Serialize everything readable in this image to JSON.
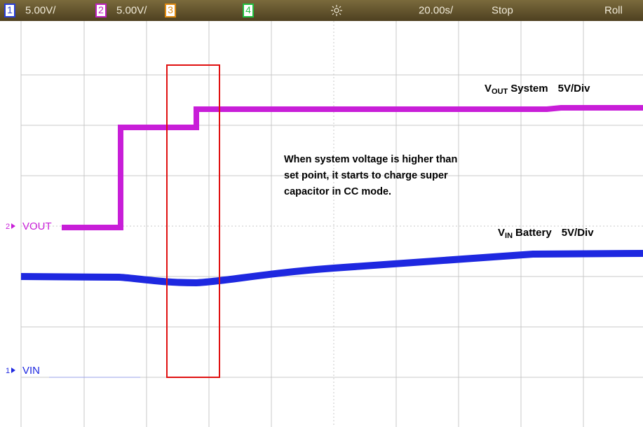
{
  "header": {
    "channels": [
      {
        "number": "1",
        "scale": "5.00V/"
      },
      {
        "number": "2",
        "scale": "5.00V/"
      },
      {
        "number": "3"
      },
      {
        "number": "4"
      }
    ],
    "timebase": "20.00s/",
    "status": "Stop",
    "mode": "Roll"
  },
  "traces": [
    {
      "marker": "2",
      "label": "VOUT"
    },
    {
      "marker": "1",
      "label": "VIN"
    }
  ],
  "annotations": {
    "vout": {
      "symbol": "V",
      "subscript": "OUT",
      "name": "System",
      "scale": "5V/Div"
    },
    "vin": {
      "symbol": "V",
      "subscript": "IN",
      "name": "Battery",
      "scale": "5V/Div"
    },
    "note": [
      "When system voltage is higher than",
      "set point, it starts to charge super",
      "capacitor in CC mode."
    ]
  }
}
